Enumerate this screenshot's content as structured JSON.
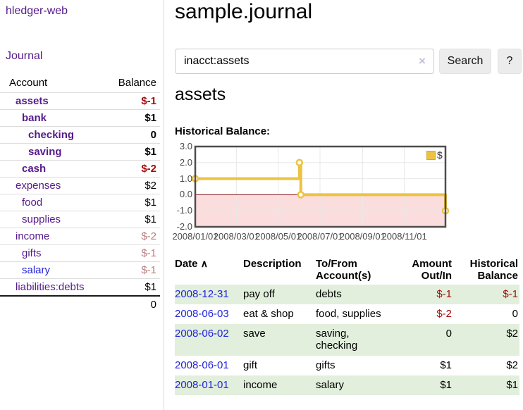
{
  "app": {
    "title": "hledger-web",
    "nav": [
      {
        "label": "Journal"
      }
    ]
  },
  "sidebar": {
    "columns": {
      "account": "Account",
      "balance": "Balance"
    },
    "accounts": [
      {
        "name": "assets",
        "balance": "$-1",
        "level": 1,
        "matched": true,
        "link_color": "purple"
      },
      {
        "name": "bank",
        "balance": "$1",
        "level": 2,
        "matched": true,
        "link_color": "purple"
      },
      {
        "name": "checking",
        "balance": "0",
        "level": 3,
        "matched": true,
        "link_color": "purple"
      },
      {
        "name": "saving",
        "balance": "$1",
        "level": 3,
        "matched": true,
        "link_color": "purple"
      },
      {
        "name": "cash",
        "balance": "$-2",
        "level": 2,
        "matched": true,
        "link_color": "purple"
      },
      {
        "name": "expenses",
        "balance": "$2",
        "level": 1,
        "matched": false,
        "link_color": "purple"
      },
      {
        "name": "food",
        "balance": "$1",
        "level": 2,
        "matched": false,
        "link_color": "purple"
      },
      {
        "name": "supplies",
        "balance": "$1",
        "level": 2,
        "matched": false,
        "link_color": "purple"
      },
      {
        "name": "income",
        "balance": "$-2",
        "level": 1,
        "matched": false,
        "link_color": "purple"
      },
      {
        "name": "gifts",
        "balance": "$-1",
        "level": 2,
        "matched": false,
        "link_color": "purple"
      },
      {
        "name": "salary",
        "balance": "$-1",
        "level": 2,
        "matched": false,
        "link_color": "blue"
      },
      {
        "name": "liabilities:debts",
        "balance": "$1",
        "level": 1,
        "matched": false,
        "link_color": "purple"
      }
    ],
    "total": "0"
  },
  "header": {
    "title": "sample.journal"
  },
  "search": {
    "value": "inacct:assets",
    "button_label": "Search",
    "help_label": "?"
  },
  "content": {
    "heading": "assets",
    "chart_title": "Historical Balance:"
  },
  "chart_data": {
    "type": "line",
    "step": true,
    "title": "Historical Balance",
    "series": [
      {
        "name": "$",
        "color": "#edc240",
        "points": [
          {
            "date": "2008-01-01",
            "day": 0,
            "value": 1
          },
          {
            "date": "2008-06-01",
            "day": 152,
            "value": 2
          },
          {
            "date": "2008-06-03",
            "day": 154,
            "value": 0
          },
          {
            "date": "2008-12-31",
            "day": 365,
            "value": -1
          }
        ]
      }
    ],
    "xlim_days": [
      0,
      365
    ],
    "ylim": [
      -2,
      3
    ],
    "yticks": [
      "3.0",
      "2.0",
      "1.0",
      "0.0",
      "-1.0",
      "-2.0"
    ],
    "xticks": [
      {
        "label": "2008/01/01",
        "day": 0
      },
      {
        "label": "2008/03/01",
        "day": 60
      },
      {
        "label": "2008/05/01",
        "day": 121
      },
      {
        "label": "2008/07/01",
        "day": 182
      },
      {
        "label": "2008/09/01",
        "day": 244
      },
      {
        "label": "2008/11/01",
        "day": 305
      }
    ],
    "legend": {
      "label": "$",
      "position": "top-right"
    },
    "colors": {
      "series": "#edc240",
      "marker_fill": "#ffffff",
      "negative_region": "#fbdddd",
      "zero_line": "#8b1a1a",
      "grid": "#e8e8e8",
      "frame": "#4d4d4d"
    }
  },
  "table": {
    "headers": [
      {
        "label": "Date",
        "sortable": true
      },
      {
        "label": "Description"
      },
      {
        "label": "To/From\nAccount(s)"
      },
      {
        "label": "Amount\nOut/In",
        "align": "right"
      },
      {
        "label": "Historical\nBalance",
        "align": "right"
      }
    ],
    "rows": [
      {
        "date": "2008-12-31",
        "description": "pay off",
        "accounts": "debts",
        "amount": "$-1",
        "balance": "$-1"
      },
      {
        "date": "2008-06-03",
        "description": "eat & shop",
        "accounts": "food, supplies",
        "amount": "$-2",
        "balance": "0"
      },
      {
        "date": "2008-06-02",
        "description": "save",
        "accounts": "saving, checking",
        "amount": "0",
        "balance": "$2"
      },
      {
        "date": "2008-06-01",
        "description": "gift",
        "accounts": "gifts",
        "amount": "$1",
        "balance": "$2"
      },
      {
        "date": "2008-01-01",
        "description": "income",
        "accounts": "salary",
        "amount": "$1",
        "balance": "$1"
      }
    ]
  },
  "icons": {
    "sort_asc": "∧",
    "clear": "×"
  },
  "colors": {
    "link_purple": "#551a8b",
    "link_blue": "#2323dd",
    "negative_strong": "#a40d0d",
    "negative_soft": "#b97c7c",
    "row_green": "#e1efdc",
    "divider": "#d8d8d8",
    "button_bg": "#ececec"
  }
}
